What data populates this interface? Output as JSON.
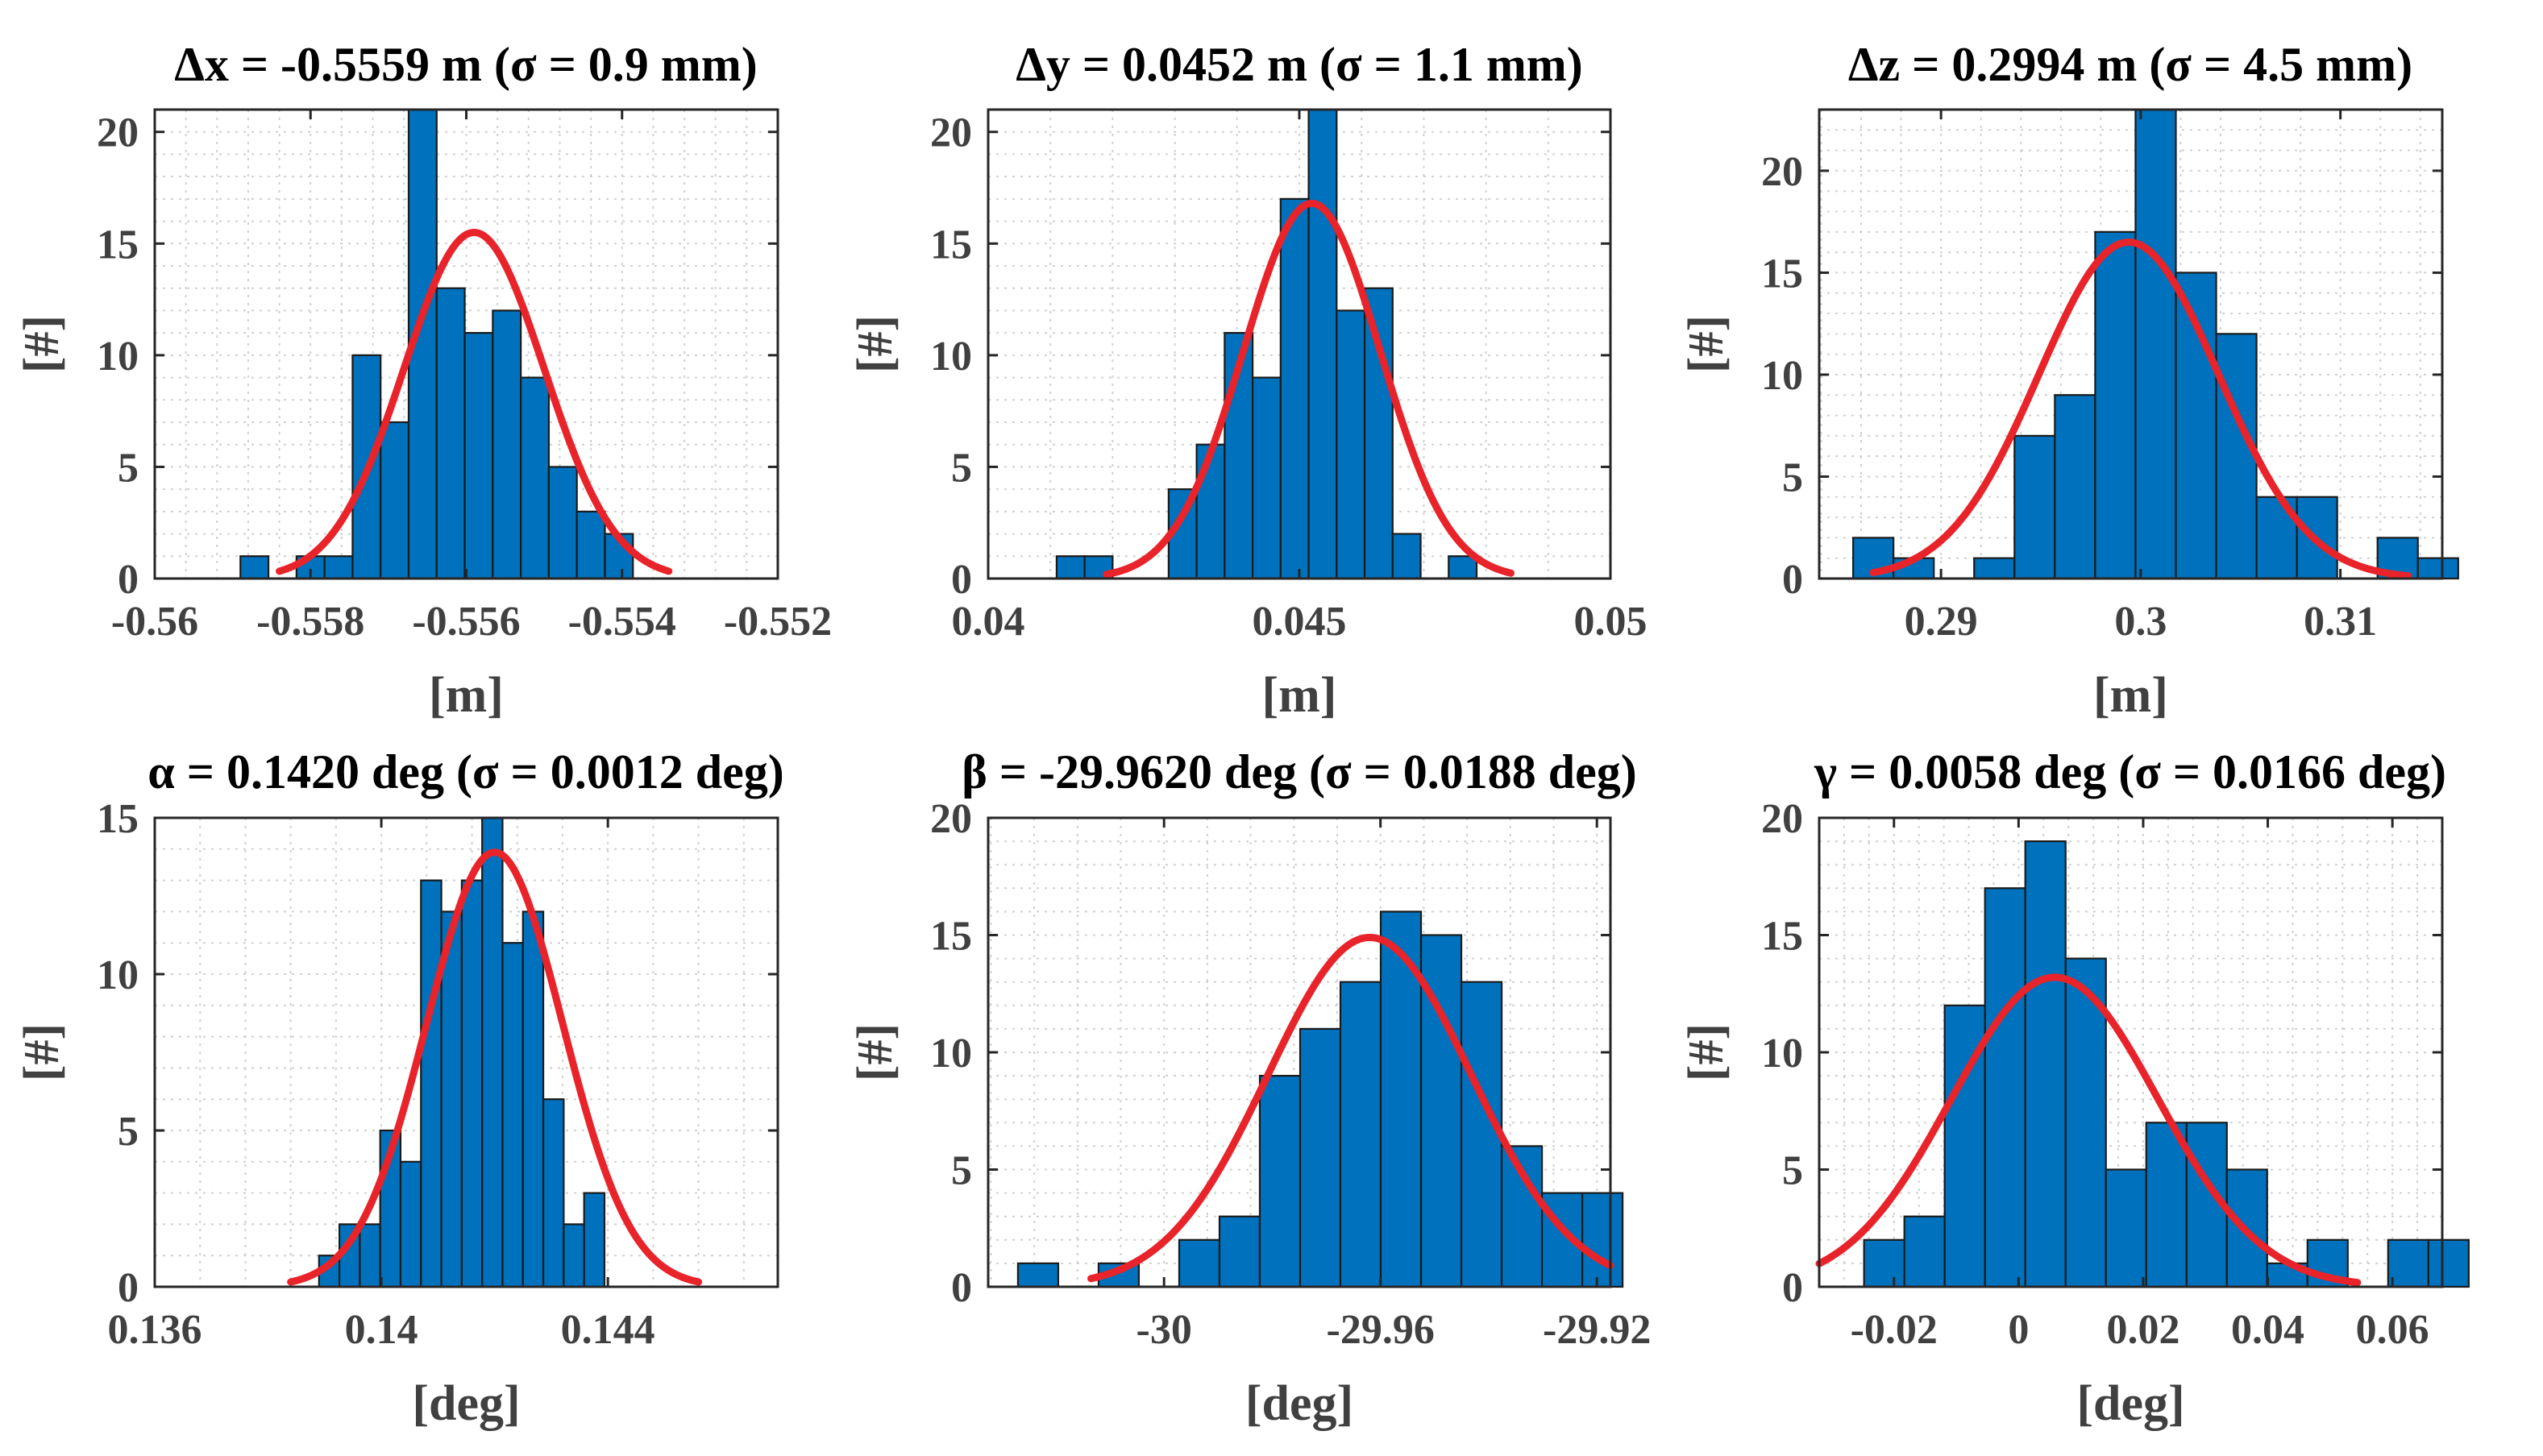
{
  "colors": {
    "bar": "#0072BD",
    "fit": "#E8232A",
    "axis": "#262626",
    "grid": "#d0d0d0",
    "text": "#404040"
  },
  "chart_data": [
    {
      "type": "bar",
      "title": "Δx = -0.5559 m (σ = 0.9 mm)",
      "xlabel": "[m]",
      "ylabel": "[#]",
      "xlim": [
        -0.56,
        -0.552
      ],
      "ylim": [
        0,
        21
      ],
      "xticks": [
        -0.56,
        -0.558,
        -0.556,
        -0.554,
        -0.552
      ],
      "xtick_labels": [
        "-0.56",
        "-0.558",
        "-0.556",
        "-0.554",
        "-0.552"
      ],
      "yticks": [
        0,
        5,
        10,
        15,
        20
      ],
      "ytick_labels": [
        "0",
        "5",
        "10",
        "15",
        "20"
      ],
      "bin_start": -0.5589,
      "bin_width": 0.00036,
      "values": [
        1,
        0,
        1,
        1,
        10,
        7,
        21,
        13,
        11,
        12,
        9,
        5,
        3,
        2
      ],
      "fit": {
        "mean": -0.5559,
        "sigma": 0.0009,
        "peak": 15.5,
        "x_from": -0.5584,
        "x_to": -0.5534
      },
      "grid": true
    },
    {
      "type": "bar",
      "title": "Δy = 0.0452 m (σ = 1.1 mm)",
      "xlabel": "[m]",
      "ylabel": "[#]",
      "xlim": [
        0.04,
        0.05
      ],
      "ylim": [
        0,
        21
      ],
      "xticks": [
        0.04,
        0.045,
        0.05
      ],
      "xtick_labels": [
        "0.04",
        "0.045",
        "0.05"
      ],
      "yticks": [
        0,
        5,
        10,
        15,
        20
      ],
      "ytick_labels": [
        "0",
        "5",
        "10",
        "15",
        "20"
      ],
      "bin_start": 0.0411,
      "bin_width": 0.00045,
      "values": [
        1,
        1,
        0,
        0,
        4,
        6,
        11,
        9,
        17,
        21,
        12,
        13,
        2,
        0,
        1
      ],
      "fit": {
        "mean": 0.0452,
        "sigma": 0.0011,
        "peak": 16.8,
        "x_from": 0.0419,
        "x_to": 0.0484
      },
      "grid": true
    },
    {
      "type": "bar",
      "title": "Δz = 0.2994 m (σ = 4.5 mm)",
      "xlabel": "[m]",
      "ylabel": "[#]",
      "xlim": [
        0.2839,
        0.3151
      ],
      "ylim": [
        0,
        23
      ],
      "xticks": [
        0.29,
        0.3,
        0.31
      ],
      "xtick_labels": [
        "0.29",
        "0.3",
        "0.31"
      ],
      "yticks": [
        0,
        5,
        10,
        15,
        20
      ],
      "ytick_labels": [
        "0",
        "5",
        "10",
        "15",
        "20"
      ],
      "bin_start": 0.2856,
      "bin_width": 0.00202,
      "values": [
        2,
        1,
        0,
        1,
        7,
        9,
        17,
        23,
        15,
        12,
        4,
        4,
        0,
        2,
        1
      ],
      "fit": {
        "mean": 0.2994,
        "sigma": 0.0045,
        "peak": 16.5,
        "x_from": 0.2866,
        "x_to": 0.3134
      },
      "grid": true
    },
    {
      "type": "bar",
      "title": "α = 0.1420 deg (σ = 0.0012 deg)",
      "xlabel": "[deg]",
      "ylabel": "[#]",
      "xlim": [
        0.136,
        0.147
      ],
      "ylim": [
        0,
        15
      ],
      "xticks": [
        0.136,
        0.14,
        0.144
      ],
      "xtick_labels": [
        "0.136",
        "0.14",
        "0.144"
      ],
      "yticks": [
        0,
        5,
        10,
        15
      ],
      "ytick_labels": [
        "0",
        "5",
        "10",
        "15"
      ],
      "bin_start": 0.1389,
      "bin_width": 0.00036,
      "values": [
        1,
        2,
        2,
        5,
        4,
        13,
        12,
        13,
        15,
        11,
        12,
        6,
        2,
        3
      ],
      "fit": {
        "mean": 0.142,
        "sigma": 0.0012,
        "peak": 13.9,
        "x_from": 0.1384,
        "x_to": 0.1456
      },
      "grid": true
    },
    {
      "type": "bar",
      "title": "β = -29.9620 deg (σ = 0.0188 deg)",
      "xlabel": "[deg]",
      "ylabel": "[#]",
      "xlim": [
        -30.0325,
        -29.9175
      ],
      "ylim": [
        0,
        20
      ],
      "xticks": [
        -30.0,
        -29.96,
        -29.92
      ],
      "xtick_labels": [
        "-30",
        "-29.96",
        "-29.92"
      ],
      "yticks": [
        0,
        5,
        10,
        15,
        20
      ],
      "ytick_labels": [
        "0",
        "5",
        "10",
        "15",
        "20"
      ],
      "bin_start": -30.027,
      "bin_width": 0.00745,
      "values": [
        1,
        0,
        1,
        0,
        2,
        3,
        9,
        11,
        13,
        16,
        15,
        13,
        6,
        4,
        4
      ],
      "fit": {
        "mean": -29.962,
        "sigma": 0.0188,
        "peak": 14.9,
        "x_from": -30.0135,
        "x_to": -29.9175
      },
      "grid": true
    },
    {
      "type": "bar",
      "title": "γ = 0.0058 deg (σ = 0.0166 deg)",
      "xlabel": "[deg]",
      "ylabel": "[#]",
      "xlim": [
        -0.032,
        0.068
      ],
      "ylim": [
        0,
        20
      ],
      "xticks": [
        -0.02,
        0,
        0.02,
        0.04,
        0.06
      ],
      "xtick_labels": [
        "-0.02",
        "0",
        "0.02",
        "0.04",
        "0.06"
      ],
      "yticks": [
        0,
        5,
        10,
        15,
        20
      ],
      "ytick_labels": [
        "0",
        "5",
        "10",
        "15",
        "20"
      ],
      "bin_start": -0.0248,
      "bin_width": 0.00647,
      "values": [
        2,
        3,
        12,
        17,
        19,
        14,
        5,
        7,
        7,
        5,
        1,
        2,
        0,
        2,
        2
      ],
      "fit": {
        "mean": 0.0058,
        "sigma": 0.0166,
        "peak": 13.2,
        "x_from": -0.032,
        "x_to": 0.0544
      },
      "grid": true
    }
  ]
}
